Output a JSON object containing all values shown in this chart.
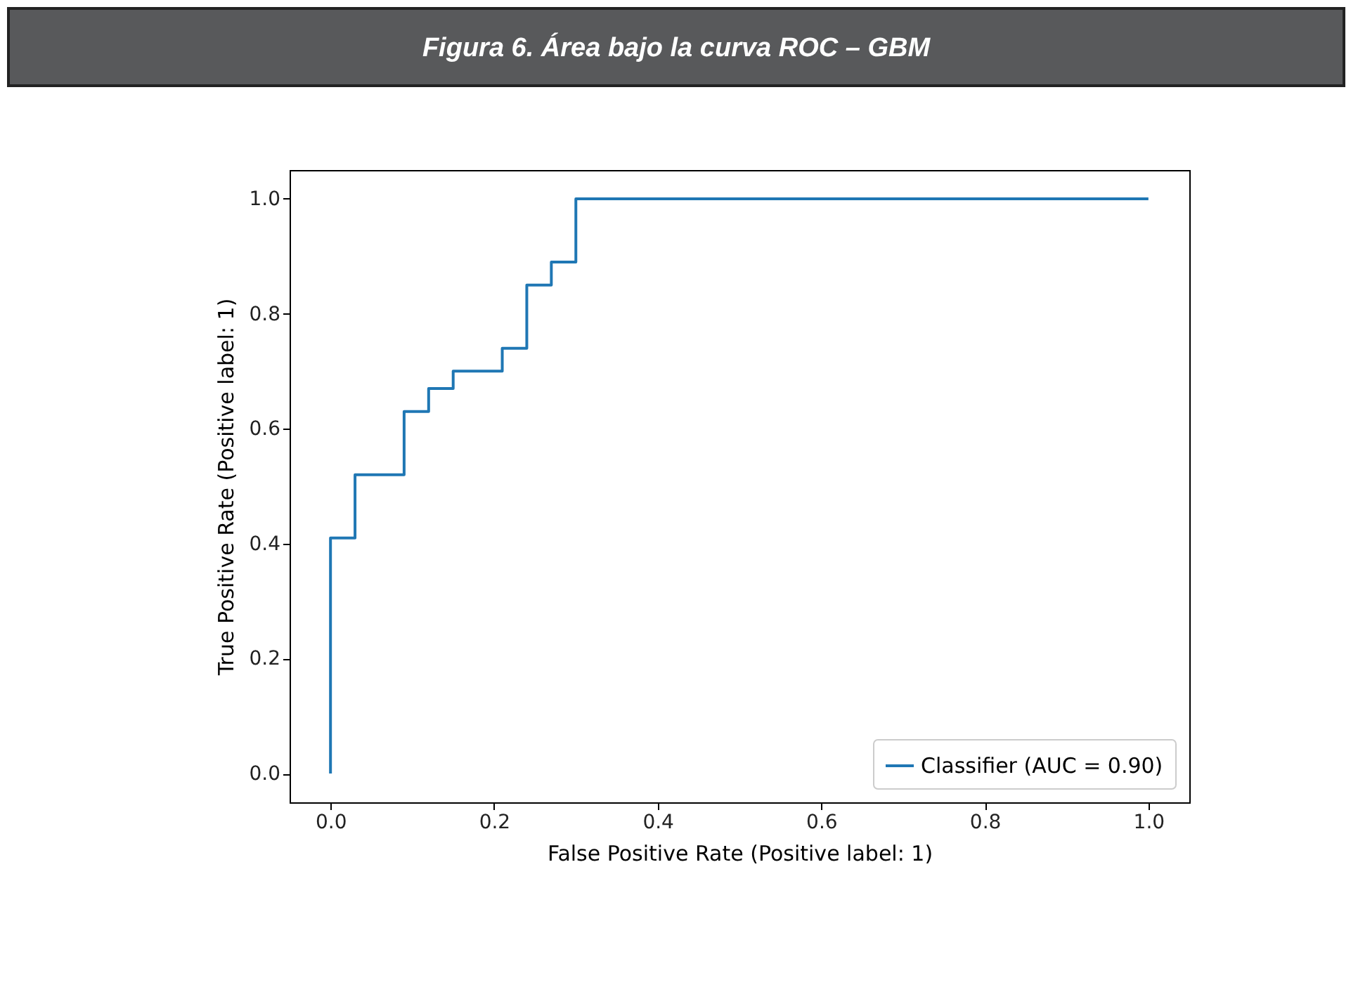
{
  "chart_data": {
    "type": "step",
    "title": "Figura 6. Área bajo la curva ROC – GBM",
    "xlabel": "False Positive Rate (Positive label: 1)",
    "ylabel": "True Positive Rate (Positive label: 1)",
    "x": [
      0,
      0,
      0.03,
      0.09,
      0.12,
      0.15,
      0.21,
      0.24,
      0.27,
      0.3,
      1.0
    ],
    "series": [
      {
        "name": "Classifier (AUC = 0.90)",
        "color": "#1f77b4",
        "values": [
          0,
          0.41,
          0.52,
          0.63,
          0.67,
          0.7,
          0.74,
          0.85,
          0.89,
          1.0,
          1.0
        ]
      }
    ],
    "xlim": [
      -0.05,
      1.05
    ],
    "ylim": [
      -0.05,
      1.05
    ],
    "xticks": [
      {
        "value": 0,
        "label": "0.0"
      },
      0.2,
      0.4,
      0.6,
      0.8,
      {
        "value": 1,
        "label": "1.0"
      }
    ],
    "yticks": [
      {
        "value": 0,
        "label": "0.0"
      },
      0.2,
      0.4,
      0.6,
      0.8,
      {
        "value": 1,
        "label": "1.0"
      }
    ],
    "grid": false,
    "legend": "bottom right",
    "marker": "none",
    "line_style": "solid"
  }
}
